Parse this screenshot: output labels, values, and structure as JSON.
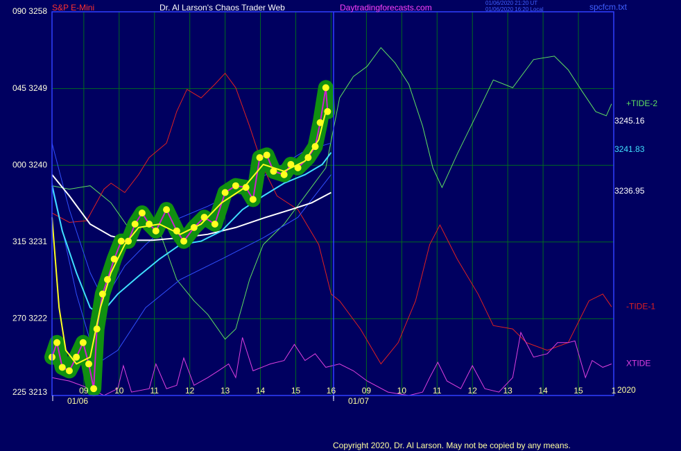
{
  "chart_data": {
    "type": "line",
    "header": {
      "instrument": "S&P E-Mini",
      "title": "Dr. Al Larson's Chaos Trader Web",
      "site": "Daytradingforecasts.com",
      "time_ut": "01/06/2020 21:20 UT",
      "time_local": "01/06/2020 16:20 Local",
      "file": "spcfcm.txt"
    },
    "copyright": "Copyright 2020, Dr. Al Larson. May not be copied by any means.",
    "year_label": "2020",
    "date_labels": [
      "01/06",
      "01/07"
    ],
    "grid": true,
    "xlim": [
      8.1,
      24
    ],
    "ylim": [
      3213,
      3258
    ],
    "yticks": [
      {
        "value": 3258,
        "label": "090 3258"
      },
      {
        "value": 3249,
        "label": "045 3249"
      },
      {
        "value": 3240,
        "label": "000 3240"
      },
      {
        "value": 3231,
        "label": "315 3231"
      },
      {
        "value": 3222,
        "label": "270 3222"
      },
      {
        "value": 3213,
        "label": "225 3213"
      }
    ],
    "xticks": [
      {
        "value": 9,
        "label": "09"
      },
      10,
      11,
      12,
      13,
      14,
      15,
      16,
      {
        "value": 17,
        "label": "09"
      },
      {
        "value": 18,
        "label": "10"
      },
      {
        "value": 19,
        "label": "11"
      },
      {
        "value": 20,
        "label": "12"
      },
      {
        "value": 21,
        "label": "13"
      },
      {
        "value": 22,
        "label": "14"
      },
      {
        "value": 23,
        "label": "15"
      },
      {
        "value": 24,
        "label": "1"
      }
    ],
    "price_labels": [
      {
        "value": 3245.16,
        "color": "#ffffff"
      },
      {
        "value": 3241.83,
        "color": "#40e0ff"
      },
      {
        "value": 3236.95,
        "color": "#ffffff"
      }
    ],
    "series": [
      {
        "name": "+TIDE-2",
        "color": "#60e060",
        "width": 1,
        "x": [
          8.1,
          8.59,
          9.18,
          9.77,
          10.26,
          10.55,
          11.14,
          11.63,
          12.12,
          12.51,
          13.0,
          13.3,
          13.69,
          14.08,
          14.67,
          15.26,
          15.85,
          16.24,
          16.63,
          17.02,
          17.41,
          17.81,
          18.2,
          18.59,
          18.88,
          19.14,
          19.57,
          20.16,
          20.59,
          21.14,
          21.73,
          22.32,
          22.71,
          23.1,
          23.49,
          23.79,
          23.94
        ],
        "values": [
          3237.6,
          3237.2,
          3237.6,
          3235.6,
          3232.7,
          3233.9,
          3232.3,
          3226.6,
          3224.1,
          3222.5,
          3219.6,
          3220.8,
          3226.6,
          3230.7,
          3233.1,
          3236.4,
          3239.7,
          3247.9,
          3250.4,
          3251.6,
          3253.8,
          3252.0,
          3249.5,
          3244.6,
          3239.7,
          3237.4,
          3241.3,
          3246.3,
          3250.0,
          3249.1,
          3252.4,
          3252.8,
          3251.2,
          3248.7,
          3246.3,
          3245.8,
          3247.2
        ]
      },
      {
        "name": "-TIDE-1",
        "color": "#e02020",
        "width": 1,
        "x": [
          8.1,
          8.59,
          9.08,
          9.57,
          9.77,
          10.16,
          10.55,
          10.85,
          11.34,
          11.63,
          11.92,
          12.32,
          12.71,
          13.0,
          13.3,
          13.69,
          14.08,
          14.47,
          15.06,
          15.65,
          16.0,
          16.24,
          16.83,
          17.41,
          17.9,
          18.39,
          18.79,
          19.08,
          19.57,
          20.16,
          20.59,
          21.14,
          21.53,
          22.12,
          22.71,
          23.3,
          23.69,
          23.94
        ],
        "values": [
          3234.4,
          3233.3,
          3233.5,
          3237.2,
          3237.9,
          3236.8,
          3238.9,
          3240.9,
          3242.6,
          3246.3,
          3248.9,
          3247.9,
          3249.5,
          3250.8,
          3249.1,
          3244.6,
          3239.7,
          3236.4,
          3234.8,
          3230.7,
          3224.9,
          3224.1,
          3220.8,
          3216.7,
          3219.2,
          3224.1,
          3230.7,
          3233.0,
          3229.0,
          3224.9,
          3221.2,
          3220.8,
          3219.2,
          3218.3,
          3219.2,
          3224.1,
          3224.9,
          3223.4
        ]
      },
      {
        "name": "XTIDE",
        "color": "#e040e0",
        "width": 1,
        "x": [
          8.1,
          8.59,
          9.18,
          9.57,
          9.96,
          10.12,
          10.35,
          10.85,
          11.04,
          11.34,
          11.63,
          11.83,
          12.12,
          12.51,
          12.81,
          13.1,
          13.3,
          13.49,
          13.79,
          14.28,
          14.67,
          14.96,
          15.26,
          15.55,
          15.85,
          16.24,
          16.63,
          17.02,
          17.61,
          18.2,
          18.59,
          18.79,
          19.02,
          19.28,
          19.67,
          20.0,
          20.35,
          20.75,
          21.14,
          21.37,
          21.73,
          22.12,
          22.41,
          22.71,
          22.9,
          23.2,
          23.39,
          23.69,
          23.94
        ],
        "values": [
          3215.1,
          3214.7,
          3213.8,
          3213.0,
          3213.8,
          3216.5,
          3213.4,
          3213.8,
          3216.7,
          3213.8,
          3214.2,
          3217.4,
          3214.2,
          3215.1,
          3215.9,
          3216.7,
          3215.1,
          3219.8,
          3215.9,
          3216.7,
          3217.1,
          3219.0,
          3217.1,
          3217.9,
          3216.3,
          3216.7,
          3215.9,
          3214.7,
          3213.4,
          3213.0,
          3213.4,
          3215.1,
          3216.9,
          3214.7,
          3213.8,
          3216.5,
          3213.8,
          3213.4,
          3215.1,
          3220.4,
          3217.5,
          3217.9,
          3219.2,
          3219.2,
          3219.4,
          3215.1,
          3217.1,
          3216.3,
          3216.7
        ]
      },
      {
        "color": "#3050ff",
        "width": 1,
        "x": [
          8.1,
          8.59,
          9.18,
          9.57,
          10.16,
          10.75,
          11.53,
          12.51,
          13.49,
          14.47,
          15.26,
          16.0
        ],
        "values": [
          3242.6,
          3234.8,
          3227.4,
          3224.1,
          3228.2,
          3230.7,
          3233.5,
          3235.2,
          3237.2,
          3239.7,
          3241.7,
          3242.6
        ]
      },
      {
        "color": "#3050ff",
        "width": 1,
        "x": [
          8.1,
          8.79,
          9.37,
          9.96,
          10.75,
          11.73,
          12.9,
          14.08,
          15.06,
          16.0
        ],
        "values": [
          3238.0,
          3224.9,
          3216.7,
          3218.3,
          3223.3,
          3226.6,
          3229.0,
          3231.5,
          3233.9,
          3238.9
        ]
      },
      {
        "color": "#ffffff",
        "width": 2,
        "x": [
          8.1,
          8.59,
          9.18,
          9.77,
          10.35,
          10.94,
          11.73,
          12.51,
          13.3,
          14.08,
          14.86,
          15.45,
          16.0
        ],
        "values": [
          3238.9,
          3236.4,
          3233.1,
          3231.7,
          3231.2,
          3231.2,
          3231.5,
          3231.9,
          3232.7,
          3233.8,
          3234.8,
          3235.6,
          3236.8
        ]
      },
      {
        "color": "#40e0ff",
        "width": 2,
        "x": [
          8.1,
          8.39,
          8.79,
          9.18,
          9.47,
          9.96,
          10.55,
          11.14,
          11.73,
          12.32,
          12.9,
          13.49,
          14.08,
          14.67,
          15.26,
          15.75,
          16.0
        ],
        "values": [
          3237.6,
          3232.3,
          3227.4,
          3223.3,
          3222.5,
          3224.9,
          3227.0,
          3229.0,
          3230.7,
          3231.1,
          3232.3,
          3234.8,
          3236.4,
          3237.9,
          3238.9,
          3240.1,
          3241.5
        ]
      },
      {
        "color": "#d020d0",
        "width": 2,
        "halo_color": "#109010",
        "marker_color": "#ffff20",
        "x": [
          8.1,
          8.24,
          8.39,
          8.59,
          8.79,
          8.98,
          9.14,
          9.28,
          9.37,
          9.53,
          9.67,
          9.86,
          10.06,
          10.26,
          10.45,
          10.65,
          10.85,
          11.04,
          11.34,
          11.63,
          11.83,
          12.12,
          12.41,
          12.71,
          13.0,
          13.3,
          13.59,
          13.79,
          13.98,
          14.18,
          14.37,
          14.67,
          14.86,
          15.06,
          15.35,
          15.55,
          15.69,
          15.85,
          15.9
        ],
        "values": [
          3217.5,
          3219.2,
          3216.3,
          3215.9,
          3217.5,
          3219.2,
          3216.7,
          3213.8,
          3220.8,
          3224.9,
          3226.6,
          3229.0,
          3231.1,
          3231.1,
          3233.1,
          3234.4,
          3233.1,
          3232.3,
          3234.8,
          3232.3,
          3231.1,
          3232.7,
          3233.9,
          3233.1,
          3236.8,
          3237.6,
          3237.4,
          3236.0,
          3240.9,
          3241.2,
          3239.3,
          3238.9,
          3240.1,
          3239.7,
          3240.9,
          3242.2,
          3245.0,
          3249.1,
          3246.3
        ]
      },
      {
        "color": "#ffff20",
        "width": 2,
        "x": [
          8.1,
          8.3,
          8.49,
          8.79,
          9.18,
          9.47,
          9.77,
          10.16,
          10.55,
          11.14,
          11.73,
          12.32,
          12.9,
          13.49,
          14.08,
          14.67,
          15.26,
          15.65,
          15.85
        ],
        "values": [
          3233.9,
          3223.3,
          3218.3,
          3216.7,
          3217.5,
          3223.3,
          3227.4,
          3230.7,
          3232.7,
          3233.1,
          3231.9,
          3233.1,
          3235.6,
          3237.2,
          3240.1,
          3239.3,
          3240.5,
          3243.0,
          3246.3
        ]
      }
    ]
  }
}
